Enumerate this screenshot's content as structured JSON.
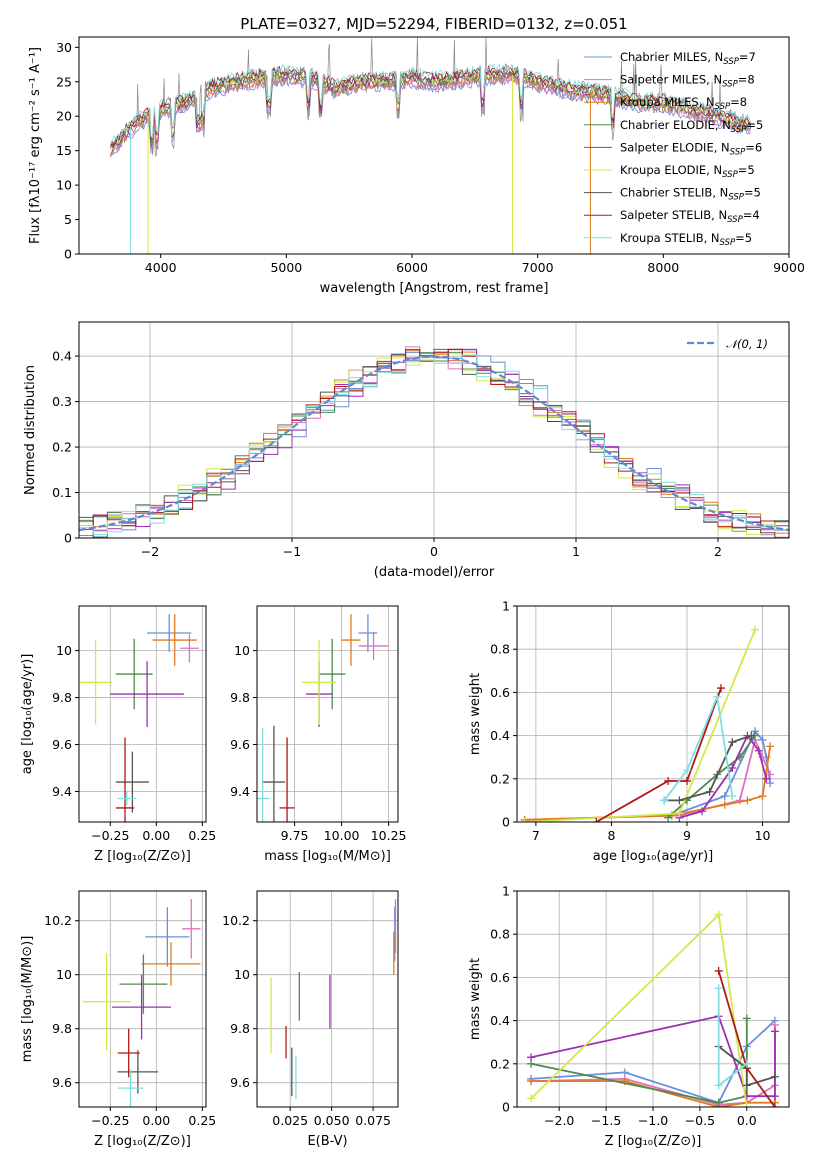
{
  "colors": {
    "Chabrier MILES": "#6b8fd8",
    "Salpeter MILES": "#e26fc0",
    "Kroupa MILES": "#e07b1f",
    "Chabrier ELODIE": "#4f8a4f",
    "Salpeter ELODIE": "#9b30b0",
    "Kroupa ELODIE": "#d4e84a",
    "Chabrier STELIB": "#555555",
    "Salpeter STELIB": "#b01818",
    "Kroupa STELIB": "#80dfe0"
  },
  "chart_data": [
    {
      "id": "spectrum",
      "type": "line",
      "title": "PLATE=0327, MJD=52294, FIBERID=0132, z=0.051",
      "xlabel": "wavelength [Angstrom, rest frame]",
      "ylabel": "Flux [fλ10⁻¹⁷ erg cm⁻² s⁻¹ A⁻¹]",
      "xlim": [
        3350,
        9000
      ],
      "ylim": [
        0,
        31.5
      ],
      "xticks": [
        "4000",
        "5000",
        "6000",
        "7000",
        "8000",
        "9000"
      ],
      "yticks": [
        "0",
        "5",
        "10",
        "15",
        "20",
        "25",
        "30"
      ],
      "grid": false,
      "legend_position": "right",
      "legend": [
        {
          "name": "Chabrier MILES",
          "nssp": "7"
        },
        {
          "name": "Salpeter MILES",
          "nssp": "8"
        },
        {
          "name": "Kroupa MILES",
          "nssp": "8"
        },
        {
          "name": "Chabrier ELODIE",
          "nssp": "5"
        },
        {
          "name": "Salpeter ELODIE",
          "nssp": "6"
        },
        {
          "name": "Kroupa ELODIE",
          "nssp": "5"
        },
        {
          "name": "Chabrier STELIB",
          "nssp": "5"
        },
        {
          "name": "Salpeter STELIB",
          "nssp": "4"
        },
        {
          "name": "Kroupa STELIB",
          "nssp": "5"
        }
      ],
      "legend_sub": "SSP",
      "spectrum_range": [
        3600,
        8700
      ],
      "continuum": [
        [
          3600,
          15
        ],
        [
          3700,
          17
        ],
        [
          3800,
          19
        ],
        [
          3900,
          20
        ],
        [
          4000,
          21
        ],
        [
          4200,
          22
        ],
        [
          4400,
          24
        ],
        [
          4600,
          25
        ],
        [
          4800,
          25.5
        ],
        [
          5000,
          26
        ],
        [
          5200,
          25.5
        ],
        [
          5400,
          24
        ],
        [
          5600,
          25
        ],
        [
          5800,
          25
        ],
        [
          6000,
          25.5
        ],
        [
          6200,
          25
        ],
        [
          6400,
          25.5
        ],
        [
          6600,
          26
        ],
        [
          6800,
          26
        ],
        [
          7000,
          25
        ],
        [
          7200,
          24
        ],
        [
          7400,
          23.5
        ],
        [
          7600,
          23
        ],
        [
          7800,
          22
        ],
        [
          8000,
          22
        ],
        [
          8200,
          21
        ],
        [
          8400,
          20
        ],
        [
          8600,
          19
        ],
        [
          8700,
          18.5
        ]
      ]
    },
    {
      "id": "residuals",
      "type": "line",
      "xlabel": "(data-model)/error",
      "ylabel": "Normed distribution",
      "xlim": [
        -2.5,
        2.5
      ],
      "ylim": [
        0,
        0.475
      ],
      "xticks": [
        -2,
        -1,
        0,
        1,
        2
      ],
      "yticks": [
        0.0,
        0.1,
        0.2,
        0.3,
        0.4
      ],
      "grid": true,
      "legend_position": "upper right",
      "legend": "𝒩(0, 1)",
      "gaussian_color": "#5b8ad8"
    },
    {
      "id": "age-vs-Z",
      "type": "scatter",
      "xlabel": "Z [log₁₀(Z/Z⊙)]",
      "ylabel": "age  [log₁₀(age/yr)]",
      "xlim": [
        -0.42,
        0.27
      ],
      "ylim": [
        9.27,
        10.19
      ],
      "xticks": [
        -0.25,
        0.0,
        0.25
      ],
      "xtick_labels": [
        "−0.25",
        "0.00",
        "0.25"
      ],
      "yticks": [
        9.4,
        9.6,
        9.8,
        10.0
      ],
      "grid": true,
      "points": [
        {
          "name": "Chabrier MILES",
          "x": 0.07,
          "xerr": 0.12,
          "y": 10.075,
          "yerr": 0.08
        },
        {
          "name": "Salpeter MILES",
          "x": 0.18,
          "xerr": 0.05,
          "y": 10.01,
          "yerr": 0.06
        },
        {
          "name": "Kroupa MILES",
          "x": 0.1,
          "xerr": 0.12,
          "y": 10.045,
          "yerr": 0.11
        },
        {
          "name": "Chabrier ELODIE",
          "x": -0.12,
          "xerr": 0.1,
          "y": 9.9,
          "yerr": 0.15
        },
        {
          "name": "Salpeter ELODIE",
          "x": -0.05,
          "xerr": 0.2,
          "y": 9.815,
          "yerr": 0.14
        },
        {
          "name": "Kroupa ELODIE",
          "x": -0.33,
          "xerr": 0.09,
          "y": 9.865,
          "yerr": 0.18
        },
        {
          "name": "Chabrier STELIB",
          "x": -0.13,
          "xerr": 0.09,
          "y": 9.44,
          "yerr": 0.13
        },
        {
          "name": "Salpeter STELIB",
          "x": -0.17,
          "xerr": 0.05,
          "y": 9.33,
          "yerr": 0.3
        },
        {
          "name": "Kroupa STELIB",
          "x": -0.16,
          "xerr": 0.05,
          "y": 9.37,
          "yerr": 0.03
        }
      ]
    },
    {
      "id": "age-vs-mass",
      "type": "scatter",
      "xlabel": "mass [log₁₀(M/M⊙)]",
      "xlim": [
        9.55,
        10.3
      ],
      "ylim": [
        9.27,
        10.19
      ],
      "xticks": [
        9.75,
        10.0,
        10.25
      ],
      "xtick_labels": [
        "9.75",
        "10.00",
        "10.25"
      ],
      "yticks": [
        9.4,
        9.6,
        9.8,
        10.0
      ],
      "grid": true,
      "points": [
        {
          "name": "Chabrier MILES",
          "x": 10.14,
          "xerr": 0.05,
          "y": 10.075,
          "yerr": 0.08
        },
        {
          "name": "Salpeter MILES",
          "x": 10.17,
          "xerr": 0.08,
          "y": 10.02,
          "yerr": 0.06
        },
        {
          "name": "Kroupa MILES",
          "x": 10.05,
          "xerr": 0.05,
          "y": 10.045,
          "yerr": 0.11
        },
        {
          "name": "Chabrier ELODIE",
          "x": 9.95,
          "xerr": 0.07,
          "y": 9.9,
          "yerr": 0.15
        },
        {
          "name": "Salpeter ELODIE",
          "x": 9.88,
          "xerr": 0.07,
          "y": 9.815,
          "yerr": 0.14
        },
        {
          "name": "Kroupa ELODIE",
          "x": 9.88,
          "xerr": 0.09,
          "y": 9.865,
          "yerr": 0.18
        },
        {
          "name": "Chabrier STELIB",
          "x": 9.64,
          "xerr": 0.06,
          "y": 9.44,
          "yerr": 0.24
        },
        {
          "name": "Salpeter STELIB",
          "x": 9.71,
          "xerr": 0.04,
          "y": 9.33,
          "yerr": 0.3
        },
        {
          "name": "Kroupa STELIB",
          "x": 9.58,
          "xerr": 0.04,
          "y": 9.37,
          "yerr": 0.3
        }
      ]
    },
    {
      "id": "weight-vs-age",
      "type": "line",
      "xlabel": "age  [log₁₀(age/yr)]",
      "ylabel": "mass weight",
      "xlim": [
        6.75,
        10.35
      ],
      "ylim": [
        0,
        1.0
      ],
      "xticks": [
        7,
        8,
        9,
        10
      ],
      "yticks": [
        0.0,
        0.2,
        0.4,
        0.6,
        0.8,
        1.0
      ],
      "grid": true,
      "series": [
        {
          "name": "Chabrier MILES",
          "x": [
            8.8,
            9.5,
            9.9,
            10.0,
            10.05,
            10.1
          ],
          "y": [
            0.03,
            0.12,
            0.42,
            0.38,
            0.3,
            0.18
          ]
        },
        {
          "name": "Salpeter MILES",
          "x": [
            6.85,
            8.9,
            9.7,
            9.9,
            10.0,
            10.1
          ],
          "y": [
            0.01,
            0.03,
            0.1,
            0.38,
            0.3,
            0.22
          ]
        },
        {
          "name": "Kroupa MILES",
          "x": [
            6.85,
            8.8,
            9.5,
            9.8,
            10.0,
            10.1
          ],
          "y": [
            0.01,
            0.03,
            0.08,
            0.1,
            0.12,
            0.35
          ]
        },
        {
          "name": "Chabrier ELODIE",
          "x": [
            8.75,
            9.0,
            9.4,
            9.7,
            9.9
          ],
          "y": [
            0.02,
            0.1,
            0.22,
            0.3,
            0.4
          ]
        },
        {
          "name": "Salpeter ELODIE",
          "x": [
            8.9,
            9.2,
            9.6,
            9.8,
            9.95,
            10.05
          ],
          "y": [
            0.02,
            0.05,
            0.25,
            0.4,
            0.33,
            0.2
          ]
        },
        {
          "name": "Kroupa ELODIE",
          "x": [
            6.85,
            8.9,
            9.9
          ],
          "y": [
            0.0,
            0.04,
            0.89
          ]
        },
        {
          "name": "Chabrier STELIB",
          "x": [
            8.7,
            8.9,
            9.3,
            9.6,
            9.85
          ],
          "y": [
            0.1,
            0.1,
            0.14,
            0.37,
            0.4
          ]
        },
        {
          "name": "Salpeter STELIB",
          "x": [
            7.8,
            8.75,
            9.0,
            9.45
          ],
          "y": [
            0.0,
            0.19,
            0.19,
            0.62
          ]
        },
        {
          "name": "Kroupa STELIB",
          "x": [
            8.7,
            9.0,
            9.4,
            9.6
          ],
          "y": [
            0.1,
            0.24,
            0.58,
            0.12
          ]
        }
      ]
    },
    {
      "id": "mass-vs-Z",
      "type": "scatter",
      "xlabel": "Z [log₁₀(Z/Z⊙)]",
      "ylabel": "mass [log₁₀(M/M⊙)]",
      "xlim": [
        -0.42,
        0.27
      ],
      "ylim": [
        9.51,
        10.31
      ],
      "xticks": [
        -0.25,
        0.0,
        0.25
      ],
      "xtick_labels": [
        "−0.25",
        "0.00",
        "0.25"
      ],
      "yticks": [
        9.6,
        9.8,
        10.0,
        10.2
      ],
      "grid": true,
      "points": [
        {
          "name": "Chabrier MILES",
          "x": 0.06,
          "xerr": 0.12,
          "y": 10.14,
          "yerr": 0.11
        },
        {
          "name": "Salpeter MILES",
          "x": 0.19,
          "xerr": 0.05,
          "y": 10.17,
          "yerr": 0.11
        },
        {
          "name": "Kroupa MILES",
          "x": 0.08,
          "xerr": 0.16,
          "y": 10.04,
          "yerr": 0.08
        },
        {
          "name": "Chabrier ELODIE",
          "x": -0.07,
          "xerr": 0.13,
          "y": 9.965,
          "yerr": 0.11
        },
        {
          "name": "Salpeter ELODIE",
          "x": -0.08,
          "xerr": 0.16,
          "y": 9.88,
          "yerr": 0.12
        },
        {
          "name": "Kroupa ELODIE",
          "x": -0.27,
          "xerr": 0.13,
          "y": 9.9,
          "yerr": 0.18
        },
        {
          "name": "Chabrier STELIB",
          "x": -0.1,
          "xerr": 0.11,
          "y": 9.64,
          "yerr": 0.08
        },
        {
          "name": "Salpeter STELIB",
          "x": -0.15,
          "xerr": 0.06,
          "y": 9.71,
          "yerr": 0.09
        },
        {
          "name": "Kroupa STELIB",
          "x": -0.14,
          "xerr": 0.07,
          "y": 9.58,
          "yerr": 0.07
        }
      ]
    },
    {
      "id": "mass-vs-EBV",
      "type": "scatter",
      "xlabel": "E(B-V)",
      "xlim": [
        0.005,
        0.09
      ],
      "ylim": [
        9.51,
        10.31
      ],
      "xticks": [
        0.025,
        0.05,
        0.075
      ],
      "xtick_labels": [
        "0.025",
        "0.050",
        "0.075"
      ],
      "yticks": [
        9.6,
        9.8,
        10.0,
        10.2
      ],
      "grid": true,
      "points": [
        {
          "name": "Chabrier MILES",
          "x": 0.088,
          "xerr": 0,
          "y": 10.15,
          "yerr": 0.1
        },
        {
          "name": "Salpeter MILES",
          "x": 0.0885,
          "xerr": 0,
          "y": 10.18,
          "yerr": 0.1
        },
        {
          "name": "Kroupa MILES",
          "x": 0.0875,
          "xerr": 0,
          "y": 10.08,
          "yerr": 0.08
        },
        {
          "name": "Chabrier ELODIE",
          "x": 0.0305,
          "xerr": 0,
          "y": 9.92,
          "yerr": 0.09
        },
        {
          "name": "Salpeter ELODIE",
          "x": 0.049,
          "xerr": 0,
          "y": 9.9,
          "yerr": 0.1
        },
        {
          "name": "Kroupa ELODIE",
          "x": 0.0135,
          "xerr": 0,
          "y": 9.85,
          "yerr": 0.14
        },
        {
          "name": "Chabrier STELIB",
          "x": 0.026,
          "xerr": 0,
          "y": 9.64,
          "yerr": 0.09
        },
        {
          "name": "Salpeter STELIB",
          "x": 0.0225,
          "xerr": 0,
          "y": 9.75,
          "yerr": 0.06
        },
        {
          "name": "Kroupa STELIB",
          "x": 0.0285,
          "xerr": 0,
          "y": 9.62,
          "yerr": 0.08
        }
      ]
    },
    {
      "id": "weight-vs-Z",
      "type": "line",
      "xlabel": "Z [log₁₀(Z/Z⊙)]",
      "ylabel": "mass weight",
      "xlim": [
        -2.45,
        0.45
      ],
      "ylim": [
        0,
        1.0
      ],
      "xticks": [
        -2.0,
        -1.5,
        -1.0,
        -0.5,
        0.0
      ],
      "xtick_labels": [
        "−2.0",
        "−1.5",
        "−1.0",
        "−0.5",
        "0.0"
      ],
      "yticks": [
        0.0,
        0.2,
        0.4,
        0.6,
        0.8,
        1.0
      ],
      "grid": true,
      "series": [
        {
          "name": "Chabrier MILES",
          "x": [
            -2.3,
            -1.3,
            -0.3,
            0.0,
            0.3
          ],
          "y": [
            0.13,
            0.16,
            0.02,
            0.28,
            0.4
          ]
        },
        {
          "name": "Salpeter MILES",
          "x": [
            -2.3,
            -1.3,
            -0.3,
            0.0,
            0.3,
            0.3
          ],
          "y": [
            0.12,
            0.13,
            0.01,
            0.02,
            0.1,
            0.38
          ]
        },
        {
          "name": "Kroupa MILES",
          "x": [
            -2.3,
            -1.3,
            -0.3,
            0.0,
            0.3,
            0.3
          ],
          "y": [
            0.12,
            0.12,
            0.0,
            0.02,
            0.02,
            0.35
          ]
        },
        {
          "name": "Chabrier ELODIE",
          "x": [
            -2.3,
            -0.3,
            0.0,
            0.0
          ],
          "y": [
            0.2,
            0.02,
            0.05,
            0.41
          ]
        },
        {
          "name": "Salpeter ELODIE",
          "x": [
            -2.3,
            -0.3,
            0.0,
            0.3,
            0.3
          ],
          "y": [
            0.23,
            0.42,
            0.05,
            0.05,
            0.35
          ]
        },
        {
          "name": "Kroupa ELODIE",
          "x": [
            -2.3,
            -0.3,
            0.0
          ],
          "y": [
            0.04,
            0.89,
            0.0
          ]
        },
        {
          "name": "Chabrier STELIB",
          "x": [
            -0.3,
            0.0,
            0.0,
            0.3
          ],
          "y": [
            0.28,
            0.18,
            0.1,
            0.14
          ]
        },
        {
          "name": "Salpeter STELIB",
          "x": [
            -0.3,
            0.0,
            0.3
          ],
          "y": [
            0.63,
            0.18,
            0.0
          ]
        },
        {
          "name": "Kroupa STELIB",
          "x": [
            -0.3,
            -0.3,
            0.0
          ],
          "y": [
            0.55,
            0.1,
            0.2
          ]
        }
      ]
    }
  ]
}
